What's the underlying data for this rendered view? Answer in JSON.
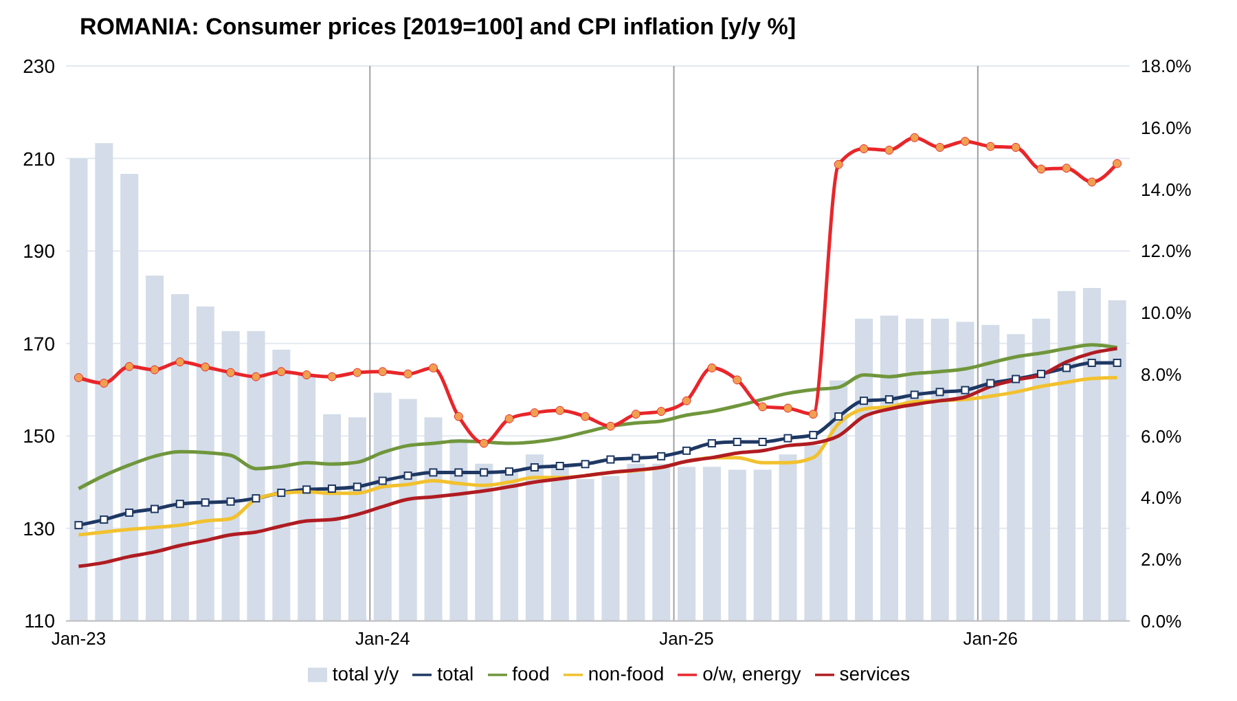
{
  "chart_data": {
    "type": "line",
    "title": "ROMANIA: Consumer prices [2019=100] and CPI inflation [y/y %]",
    "categories": [
      "Jan-23",
      null,
      null,
      null,
      null,
      null,
      null,
      null,
      null,
      null,
      null,
      null,
      "Jan-24",
      null,
      null,
      null,
      null,
      null,
      null,
      null,
      null,
      null,
      null,
      null,
      "Jan-25",
      null,
      null,
      null,
      null,
      null,
      null,
      null,
      null,
      null,
      null,
      null,
      "Jan-26",
      null,
      null,
      null,
      null,
      null
    ],
    "series": [
      {
        "name": "total y/y",
        "type": "bar",
        "axis": "y2",
        "color": "#d3dce8",
        "values": [
          15.0,
          15.5,
          14.5,
          11.2,
          10.6,
          10.2,
          9.4,
          9.4,
          8.8,
          8.0,
          6.7,
          6.6,
          7.4,
          7.2,
          6.6,
          5.9,
          5.1,
          4.9,
          5.4,
          5.1,
          4.6,
          4.7,
          5.1,
          5.1,
          5.0,
          5.0,
          4.9,
          4.9,
          5.4,
          5.7,
          7.8,
          9.8,
          9.9,
          9.8,
          9.8,
          9.7,
          9.6,
          9.3,
          9.8,
          10.7,
          10.8,
          10.4
        ]
      },
      {
        "name": "total",
        "marker": "square",
        "color": "#1f3864",
        "values": [
          130.7,
          131.9,
          133.4,
          134.2,
          135.3,
          135.6,
          135.8,
          136.5,
          137.7,
          138.4,
          138.6,
          139.0,
          140.3,
          141.4,
          142.1,
          142.1,
          142.1,
          142.3,
          143.2,
          143.5,
          143.9,
          144.9,
          145.2,
          145.6,
          146.8,
          148.4,
          148.7,
          148.7,
          149.5,
          150.2,
          154.2,
          157.6,
          157.9,
          158.9,
          159.5,
          159.9,
          161.4,
          162.3,
          163.4,
          164.7,
          165.8,
          165.8
        ]
      },
      {
        "name": "food",
        "color": "#70963c",
        "values": [
          138.6,
          141.4,
          143.7,
          145.6,
          146.6,
          146.4,
          145.8,
          142.9,
          143.4,
          144.2,
          143.9,
          144.3,
          146.4,
          147.9,
          148.4,
          148.9,
          148.7,
          148.4,
          148.7,
          149.5,
          150.8,
          152.1,
          152.8,
          153.2,
          154.5,
          155.3,
          156.5,
          157.9,
          159.2,
          160.0,
          160.5,
          163.2,
          162.8,
          163.5,
          163.9,
          164.5,
          165.8,
          167.1,
          167.9,
          168.9,
          169.7,
          169.1
        ]
      },
      {
        "name": "non-food",
        "color": "#f2c12e",
        "values": [
          128.6,
          129.2,
          129.8,
          130.2,
          130.7,
          131.6,
          132.1,
          136.3,
          137.6,
          137.9,
          137.6,
          137.6,
          139.0,
          139.5,
          140.3,
          139.7,
          139.3,
          140.0,
          141.0,
          141.0,
          141.4,
          142.1,
          142.5,
          143.2,
          144.5,
          145.3,
          145.3,
          144.2,
          144.2,
          145.3,
          152.6,
          155.8,
          156.3,
          157.4,
          157.6,
          157.9,
          158.6,
          159.5,
          160.7,
          161.6,
          162.4,
          162.6
        ]
      },
      {
        "name": "o/w, energy",
        "marker": "circle",
        "color": "#e8262b",
        "values": [
          162.6,
          161.4,
          165.0,
          164.3,
          166.0,
          164.9,
          163.7,
          162.8,
          163.9,
          163.2,
          162.8,
          163.7,
          163.9,
          163.4,
          164.7,
          154.2,
          148.4,
          153.7,
          155.0,
          155.5,
          154.2,
          152.1,
          154.7,
          155.3,
          157.6,
          164.7,
          162.1,
          156.3,
          156.0,
          154.7,
          208.7,
          212.1,
          211.8,
          214.5,
          212.4,
          213.7,
          212.6,
          212.4,
          207.7,
          207.9,
          204.9,
          208.9
        ]
      },
      {
        "name": "services",
        "color": "#b01c22",
        "values": [
          121.8,
          122.6,
          123.9,
          124.9,
          126.3,
          127.4,
          128.6,
          129.2,
          130.5,
          131.6,
          131.9,
          133.0,
          134.7,
          136.3,
          136.8,
          137.4,
          138.1,
          139.0,
          140.0,
          140.7,
          141.4,
          142.1,
          142.6,
          143.2,
          144.5,
          145.3,
          146.3,
          146.8,
          147.9,
          148.4,
          150.0,
          154.2,
          155.8,
          156.8,
          157.6,
          158.4,
          160.7,
          162.1,
          163.2,
          166.0,
          167.9,
          168.9
        ]
      }
    ],
    "ylim": [
      110,
      230
    ],
    "yticks": [
      110,
      130,
      150,
      170,
      190,
      210,
      230
    ],
    "y2lim": [
      0,
      18
    ],
    "y2ticks": [
      {
        "value": 0,
        "label": "0.0%"
      },
      {
        "value": 2,
        "label": "2.0%"
      },
      {
        "value": 4,
        "label": "4.0%"
      },
      {
        "value": 6,
        "label": "6.0%"
      },
      {
        "value": 8,
        "label": "8.0%"
      },
      {
        "value": 10,
        "label": "10.0%"
      },
      {
        "value": 12,
        "label": "12.0%"
      },
      {
        "value": 14,
        "label": "14.0%"
      },
      {
        "value": 16,
        "label": "16.0%"
      },
      {
        "value": 18,
        "label": "18.0%"
      }
    ],
    "grid": true,
    "legend": "bottom"
  }
}
